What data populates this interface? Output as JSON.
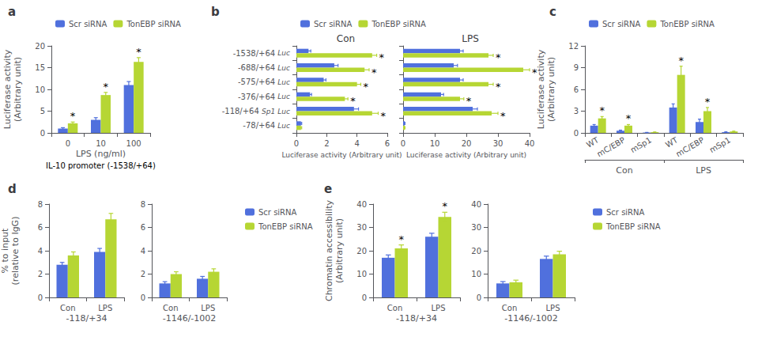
{
  "chart_data": [
    {
      "type": "bar",
      "title": "a",
      "ylabel": "Luciferase activity\n(Arbitrary unit)",
      "xlabel": "LPS (ng/ml)",
      "categories": [
        "0",
        "10",
        "100"
      ],
      "series": [
        {
          "name": "Scr siRNA",
          "values": [
            1.0,
            3.0,
            11.0
          ],
          "errors": [
            0.2,
            0.5,
            0.8
          ]
        },
        {
          "name": "TonEBP siRNA",
          "values": [
            2.2,
            8.7,
            16.3
          ],
          "errors": [
            0.3,
            0.6,
            1.0
          ]
        }
      ],
      "ylim": [
        0,
        20
      ],
      "yticks": [
        0,
        5,
        10,
        15,
        20
      ],
      "legend": "upper left",
      "annotations": [
        {
          "text": "IL-10 promoter (-1538/+64)"
        },
        {
          "text": "*",
          "series": "TonEBP siRNA",
          "index": 0
        },
        {
          "text": "*",
          "series": "TonEBP siRNA",
          "index": 1
        },
        {
          "text": "*",
          "series": "TonEBP siRNA",
          "index": 2
        }
      ]
    },
    {
      "type": "bar",
      "orientation": "horizontal",
      "title": "b",
      "subtitle": "Con",
      "xlabel": "Luciferase activity (Arbitrary unit)",
      "categories": [
        "-1538/+64",
        "-688/+64",
        "-575/+64",
        "-376/+64",
        "-118/+64",
        "-78/+64"
      ],
      "series": [
        {
          "name": "Scr siRNA",
          "values": [
            0.8,
            2.5,
            1.8,
            0.9,
            3.8,
            0.3
          ],
          "errors": [
            0.15,
            0.25,
            0.15,
            0.1,
            0.3,
            0.05
          ]
        },
        {
          "name": "TonEBP siRNA",
          "values": [
            5.0,
            4.5,
            4.0,
            3.2,
            5.0,
            0.3
          ],
          "errors": [
            0.3,
            0.3,
            0.25,
            0.2,
            0.4,
            0.05
          ]
        }
      ],
      "xlim": [
        0,
        6
      ],
      "xticks": [
        0,
        2,
        4,
        6
      ],
      "legend": "upper left",
      "annotations": [
        {
          "text": "Luc",
          "category": "-1538/+64"
        },
        {
          "text": "Luc",
          "category": "-688/+64"
        },
        {
          "text": "Luc",
          "category": "-575/+64"
        },
        {
          "text": "Luc",
          "category": "-376/+64"
        },
        {
          "text": "Sp1",
          "category": "-118/+64"
        },
        {
          "text": "Luc",
          "category": "-118/+64"
        },
        {
          "text": "Luc",
          "category": "-78/+64"
        },
        {
          "text": "*",
          "series": "TonEBP siRNA",
          "index": 0
        },
        {
          "text": "*",
          "series": "TonEBP siRNA",
          "index": 1
        },
        {
          "text": "*",
          "series": "TonEBP siRNA",
          "index": 2
        },
        {
          "text": "*",
          "series": "TonEBP siRNA",
          "index": 3
        },
        {
          "text": "*",
          "series": "TonEBP siRNA",
          "index": 4
        }
      ]
    },
    {
      "type": "bar",
      "orientation": "horizontal",
      "subtitle": "LPS",
      "xlabel": "Luciferase activity (Arbitrary unit)",
      "categories": [
        "-1538/+64",
        "-688/+64",
        "-575/+64",
        "-376/+64",
        "-118/+64",
        "-78/+64"
      ],
      "series": [
        {
          "name": "Scr siRNA",
          "values": [
            18.0,
            16.0,
            18.0,
            12.0,
            22.0,
            0.5
          ],
          "errors": [
            1.0,
            1.2,
            1.0,
            0.8,
            1.5,
            0.1
          ]
        },
        {
          "name": "TonEBP siRNA",
          "values": [
            27.0,
            38.0,
            27.0,
            18.0,
            28.0,
            0.5
          ],
          "errors": [
            1.5,
            2.0,
            1.5,
            1.2,
            2.0,
            0.1
          ]
        }
      ],
      "xlim": [
        0,
        40
      ],
      "xticks": [
        0,
        10,
        20,
        30,
        40
      ],
      "tick_labels": "x",
      "annotations": [
        {
          "text": "*",
          "series": "TonEBP siRNA",
          "index": 0
        },
        {
          "text": "*",
          "series": "TonEBP siRNA",
          "index": 1
        },
        {
          "text": "*",
          "series": "TonEBP siRNA",
          "index": 2
        },
        {
          "text": "*",
          "series": "TonEBP siRNA",
          "index": 3
        },
        {
          "text": "*",
          "series": "TonEBP siRNA",
          "index": 4
        }
      ]
    },
    {
      "type": "bar",
      "title": "c",
      "ylabel": "Luciferase activity\n(Arbitrary unit)",
      "categories": [
        "WT",
        "mC/EBP",
        "mSp1",
        "WT",
        "mC/EBP",
        "mSp1"
      ],
      "group_labels": [
        "Con",
        "LPS"
      ],
      "series": [
        {
          "name": "Scr siRNA",
          "values": [
            1.0,
            0.3,
            0.05,
            3.5,
            1.5,
            0.1
          ],
          "errors": [
            0.15,
            0.08,
            0.02,
            0.5,
            0.4,
            0.05
          ]
        },
        {
          "name": "TonEBP siRNA",
          "values": [
            2.0,
            1.0,
            0.1,
            8.0,
            3.0,
            0.2
          ],
          "errors": [
            0.25,
            0.15,
            0.03,
            1.2,
            0.5,
            0.05
          ]
        }
      ],
      "ylim": [
        0,
        12
      ],
      "yticks": [
        0,
        3,
        6,
        9,
        12
      ],
      "legend": "upper left",
      "annotations": [
        {
          "text": "*",
          "series": "TonEBP siRNA",
          "index": 0
        },
        {
          "text": "*",
          "series": "TonEBP siRNA",
          "index": 1
        },
        {
          "text": "*",
          "series": "TonEBP siRNA",
          "index": 3
        },
        {
          "text": "*",
          "series": "TonEBP siRNA",
          "index": 4
        }
      ]
    },
    {
      "type": "bar",
      "title": "d",
      "ylabel": "% to input\n(relative to IgG)",
      "xlabel": "-118/+34",
      "categories": [
        "Con",
        "LPS"
      ],
      "series": [
        {
          "name": "Scr siRNA",
          "values": [
            2.8,
            3.9
          ],
          "errors": [
            0.2,
            0.3
          ]
        },
        {
          "name": "TonEBP siRNA",
          "values": [
            3.6,
            6.7
          ],
          "errors": [
            0.3,
            0.5
          ]
        }
      ],
      "ylim": [
        0,
        8
      ],
      "yticks": [
        0,
        2,
        4,
        6,
        8
      ]
    },
    {
      "type": "bar",
      "xlabel": "-1146/-1002",
      "categories": [
        "Con",
        "LPS"
      ],
      "series": [
        {
          "name": "Scr siRNA",
          "values": [
            1.2,
            1.6
          ],
          "errors": [
            0.15,
            0.2
          ]
        },
        {
          "name": "TonEBP siRNA",
          "values": [
            2.0,
            2.2
          ],
          "errors": [
            0.2,
            0.25
          ]
        }
      ],
      "ylim": [
        0,
        8
      ],
      "yticks": [
        0,
        2,
        4,
        6,
        8
      ],
      "legend": "right"
    },
    {
      "type": "bar",
      "title": "e",
      "ylabel": "Chromatin accessibility\n(Arbitrary unit)",
      "xlabel": "-118/+34",
      "categories": [
        "Con",
        "LPS"
      ],
      "series": [
        {
          "name": "Scr siRNA",
          "values": [
            17.0,
            26.0
          ],
          "errors": [
            1.2,
            1.5
          ]
        },
        {
          "name": "TonEBP siRNA",
          "values": [
            21.0,
            34.5
          ],
          "errors": [
            1.5,
            2.0
          ]
        }
      ],
      "ylim": [
        0,
        40
      ],
      "yticks": [
        0,
        10,
        20,
        30,
        40
      ],
      "annotations": [
        {
          "text": "*",
          "series": "TonEBP siRNA",
          "index": 0
        },
        {
          "text": "*",
          "series": "TonEBP siRNA",
          "index": 1
        }
      ]
    },
    {
      "type": "bar",
      "xlabel": "-1146/-1002",
      "categories": [
        "Con",
        "LPS"
      ],
      "series": [
        {
          "name": "Scr siRNA",
          "values": [
            6.0,
            16.5
          ],
          "errors": [
            0.8,
            1.2
          ]
        },
        {
          "name": "TonEBP siRNA",
          "values": [
            6.5,
            18.5
          ],
          "errors": [
            0.9,
            1.3
          ]
        }
      ],
      "ylim": [
        0,
        40
      ],
      "yticks": [
        0,
        10,
        20,
        30,
        40
      ],
      "legend": "right"
    }
  ]
}
